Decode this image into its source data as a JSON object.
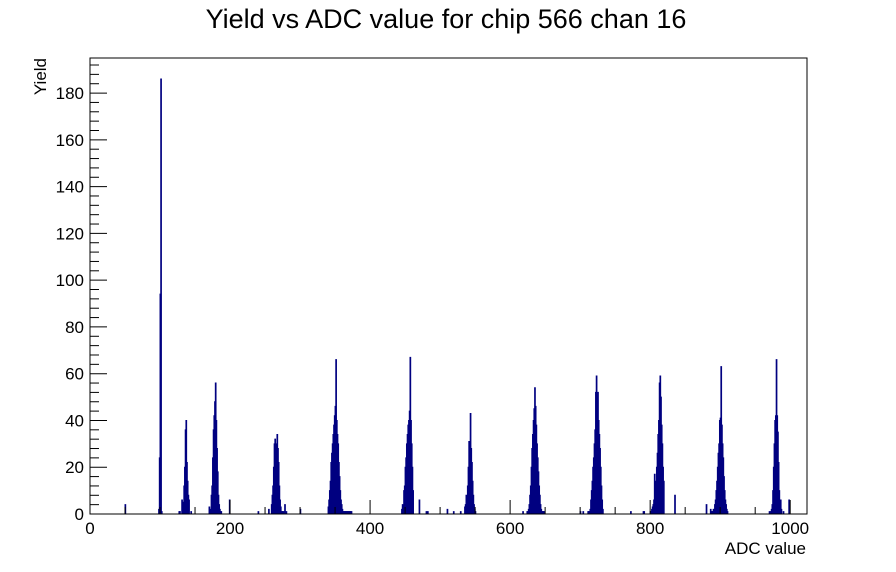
{
  "chart_data": {
    "type": "bar",
    "title": "Yield vs ADC value for chip 566 chan 16",
    "xlabel": "ADC value",
    "ylabel": "Yield",
    "xlim": [
      0,
      1024
    ],
    "ylim": [
      0,
      195
    ],
    "xticks": [
      "0",
      "200",
      "400",
      "600",
      "800",
      "1000"
    ],
    "yticks": [
      "0",
      "20",
      "40",
      "60",
      "80",
      "100",
      "120",
      "140",
      "160",
      "180"
    ],
    "grid": false,
    "line_color": "#000080",
    "bin_width": 1,
    "x": [
      50,
      98,
      99,
      100,
      101,
      102,
      127,
      128,
      131,
      132,
      133,
      134,
      135,
      136,
      137,
      138,
      139,
      140,
      141,
      144,
      170,
      172,
      173,
      174,
      175,
      176,
      177,
      178,
      179,
      180,
      181,
      182,
      183,
      184,
      185,
      186,
      187,
      199,
      240,
      255,
      259,
      260,
      261,
      262,
      263,
      264,
      265,
      266,
      267,
      268,
      269,
      270,
      271,
      272,
      273,
      274,
      275,
      276,
      278,
      280,
      300,
      340,
      341,
      342,
      343,
      344,
      345,
      346,
      347,
      348,
      349,
      350,
      351,
      352,
      353,
      354,
      355,
      356,
      357,
      358,
      359,
      360,
      361,
      362,
      363,
      364,
      365,
      366,
      367,
      368,
      369,
      370,
      371,
      372,
      373,
      445,
      446,
      448,
      449,
      450,
      451,
      452,
      453,
      454,
      455,
      456,
      457,
      458,
      459,
      460,
      461,
      470,
      480,
      482,
      510,
      519,
      529,
      535,
      536,
      537,
      538,
      539,
      540,
      541,
      542,
      543,
      544,
      545,
      546,
      547,
      548,
      549,
      550,
      618,
      624,
      625,
      626,
      627,
      628,
      629,
      630,
      631,
      632,
      633,
      634,
      635,
      636,
      637,
      638,
      639,
      640,
      641,
      642,
      643,
      644,
      645,
      646,
      647,
      648,
      700,
      704,
      711,
      712,
      713,
      714,
      715,
      716,
      717,
      718,
      719,
      720,
      721,
      722,
      723,
      724,
      725,
      726,
      727,
      728,
      729,
      730,
      731,
      732,
      772,
      790,
      791,
      800,
      801,
      802,
      803,
      804,
      805,
      806,
      807,
      808,
      809,
      810,
      811,
      812,
      813,
      814,
      815,
      816,
      817,
      818,
      819,
      835,
      880,
      886,
      887,
      888,
      889,
      890,
      891,
      892,
      893,
      894,
      895,
      896,
      897,
      898,
      899,
      900,
      901,
      902,
      903,
      904,
      905,
      906,
      907,
      908,
      909,
      910,
      970,
      972,
      973,
      974,
      975,
      976,
      977,
      978,
      979,
      980,
      981,
      982,
      983,
      984,
      985,
      986,
      987,
      990,
      998
    ],
    "values": [
      4,
      2,
      24,
      94,
      186,
      1,
      1,
      1,
      6,
      5,
      2,
      12,
      20,
      36,
      40,
      22,
      14,
      8,
      6,
      1,
      3,
      2,
      8,
      12,
      24,
      36,
      42,
      48,
      56,
      40,
      28,
      18,
      8,
      4,
      2,
      1,
      1,
      6,
      1,
      2,
      4,
      8,
      12,
      20,
      30,
      32,
      26,
      30,
      34,
      28,
      22,
      12,
      6,
      3,
      1,
      1,
      1,
      1,
      4,
      1,
      2,
      3,
      6,
      10,
      14,
      22,
      26,
      30,
      34,
      38,
      42,
      46,
      66,
      40,
      34,
      30,
      22,
      16,
      10,
      6,
      4,
      2,
      1,
      1,
      1,
      1,
      1,
      1,
      1,
      1,
      1,
      1,
      1,
      1,
      1,
      2,
      4,
      10,
      12,
      20,
      24,
      30,
      34,
      38,
      40,
      44,
      67,
      40,
      30,
      20,
      10,
      6,
      1,
      1,
      2,
      1,
      1,
      3,
      4,
      8,
      6,
      12,
      20,
      31,
      30,
      43,
      28,
      22,
      14,
      8,
      4,
      2,
      1,
      1,
      1,
      1,
      2,
      4,
      8,
      12,
      20,
      28,
      34,
      40,
      45,
      54,
      46,
      38,
      30,
      24,
      18,
      12,
      8,
      4,
      2,
      1,
      1,
      1,
      1,
      1,
      1,
      1,
      1,
      1,
      2,
      6,
      10,
      14,
      20,
      24,
      30,
      36,
      52,
      59,
      50,
      52,
      40,
      34,
      28,
      20,
      12,
      6,
      2,
      1,
      1,
      1,
      1,
      1,
      2,
      3,
      4,
      6,
      17,
      14,
      12,
      20,
      26,
      34,
      40,
      56,
      59,
      50,
      38,
      30,
      20,
      14,
      8,
      4,
      2,
      1,
      1,
      1,
      2,
      2,
      4,
      6,
      10,
      14,
      20,
      26,
      30,
      40,
      41,
      63,
      38,
      30,
      24,
      16,
      10,
      6,
      4,
      2,
      1,
      1,
      1,
      2,
      4,
      10,
      20,
      30,
      40,
      42,
      66,
      42,
      35,
      22,
      10,
      4,
      6,
      2,
      1,
      6
    ]
  }
}
